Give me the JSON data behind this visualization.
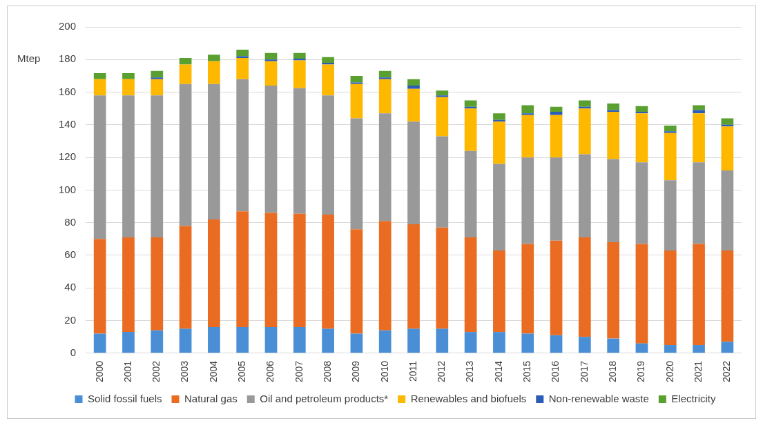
{
  "chart_data": {
    "type": "bar",
    "stacked": true,
    "ylabel": "Mtep",
    "categories": [
      "2000",
      "2001",
      "2002",
      "2003",
      "2004",
      "2005",
      "2006",
      "2007",
      "2008",
      "2009",
      "2010",
      "2011",
      "2012",
      "2013",
      "2014",
      "2015",
      "2016",
      "2017",
      "2018",
      "2019",
      "2020",
      "2021",
      "2022"
    ],
    "series": [
      {
        "name": "Solid fossil fuels",
        "color": "#4a8fd6",
        "values": [
          12,
          13,
          14,
          15,
          16,
          16,
          16,
          16,
          15,
          12,
          14,
          15,
          15,
          13,
          13,
          12,
          11,
          10,
          9,
          6,
          5,
          5,
          7
        ]
      },
      {
        "name": "Natural gas",
        "color": "#e96c22",
        "values": [
          58,
          58,
          57,
          63,
          66,
          71,
          70,
          69.5,
          70,
          64,
          67,
          64,
          62,
          58,
          50,
          55,
          58,
          61,
          59,
          61,
          58,
          62,
          56
        ]
      },
      {
        "name": "Oil and petroleum products*",
        "color": "#999999",
        "values": [
          88,
          87,
          87,
          87,
          83,
          81,
          78,
          77,
          73,
          68,
          66,
          63,
          56,
          53,
          53,
          53,
          51,
          51,
          51,
          50,
          43,
          50,
          49
        ]
      },
      {
        "name": "Renewables and biofuels",
        "color": "#ffb800",
        "values": [
          10,
          10,
          10,
          12,
          14,
          13,
          15,
          17,
          19,
          21,
          21,
          20,
          24,
          26,
          26,
          26,
          26,
          28,
          29,
          30,
          29,
          30,
          27
        ]
      },
      {
        "name": "Non-renewable waste",
        "color": "#2b5cb8",
        "values": [
          null,
          null,
          1,
          null,
          null,
          1,
          1,
          1,
          1,
          1,
          1,
          2,
          1,
          1,
          1,
          1,
          2,
          1,
          1,
          1,
          1,
          2,
          1
        ]
      },
      {
        "name": "Electricity",
        "color": "#5aa031",
        "values": [
          3.7,
          3.7,
          4,
          4,
          4,
          4,
          4,
          3.5,
          3.5,
          4,
          4,
          4,
          3,
          4,
          4,
          5,
          3,
          4,
          4,
          3.5,
          3.5,
          3,
          4
        ]
      }
    ],
    "ylim": [
      0,
      200
    ],
    "yticks": [
      0,
      20,
      40,
      60,
      80,
      100,
      120,
      140,
      160,
      180,
      200
    ],
    "grid": "y",
    "legend": "bottom"
  }
}
